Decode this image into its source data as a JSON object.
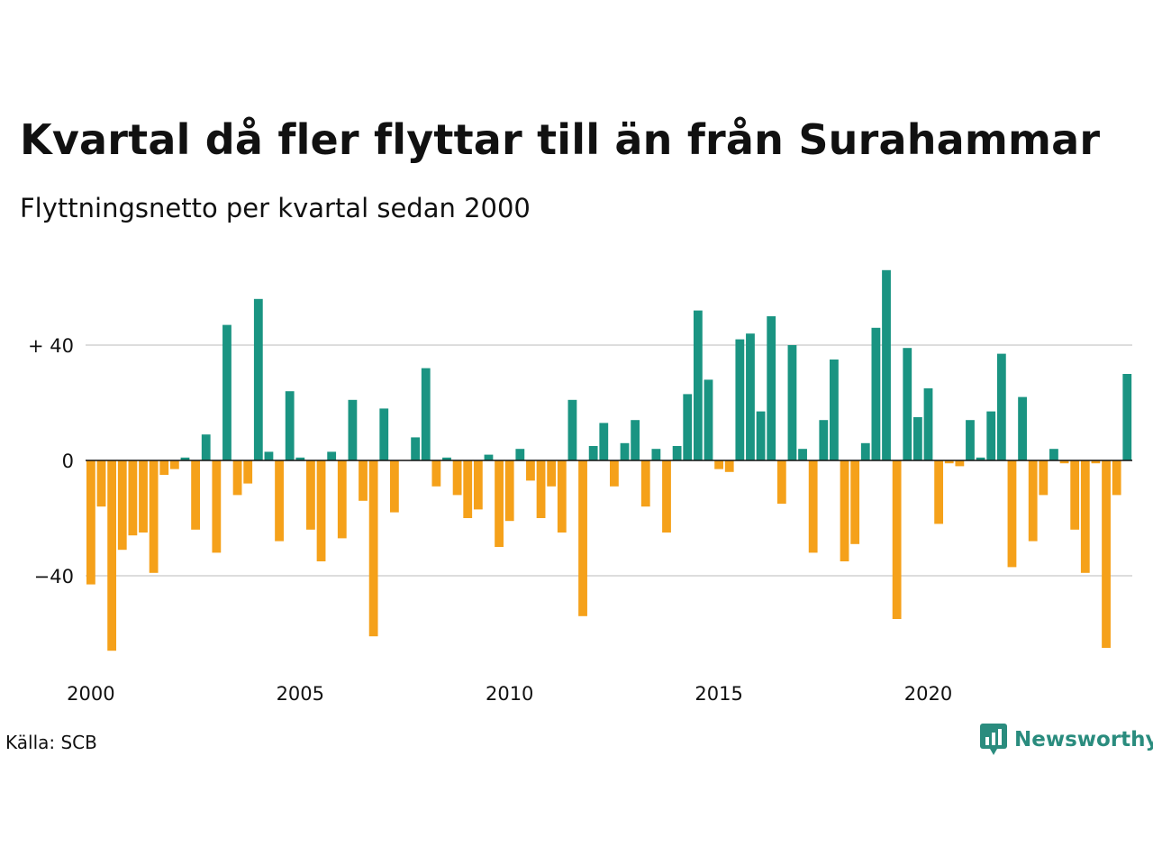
{
  "title": "Kvartal då fler flyttar till än från Surahammar",
  "subtitle": "Flyttningsnetto per kvartal sedan 2000",
  "source": "Källa: SCB",
  "brand": {
    "name": "Newsworthy",
    "icon": "newsworthy-logo-icon"
  },
  "colors": {
    "positive": "#1a9482",
    "negative": "#f5a11a",
    "grid": "#dddddd",
    "zero_line": "#111111",
    "brand": "#2a8c7e"
  },
  "chart_data": {
    "type": "bar",
    "title": "Kvartal då fler flyttar till än från Surahammar",
    "subtitle": "Flyttningsnetto per kvartal sedan 2000",
    "xlabel": "",
    "ylabel": "",
    "x_start_year": 2000,
    "periods_per_year": 4,
    "x_tick_labels": [
      "2000",
      "2005",
      "2010",
      "2015",
      "2020"
    ],
    "y_tick_values": [
      -40,
      0,
      40
    ],
    "y_tick_labels": [
      "−40",
      "0",
      "+ 40"
    ],
    "ylim": [
      -68,
      68
    ],
    "grid": true,
    "values": [
      -43,
      -16,
      -66,
      -31,
      -26,
      -25,
      -39,
      -5,
      -3,
      1,
      -24,
      9,
      -32,
      47,
      -12,
      -8,
      56,
      3,
      -28,
      24,
      1,
      -24,
      -35,
      3,
      -27,
      21,
      -14,
      -61,
      18,
      -18,
      0,
      8,
      32,
      -9,
      1,
      -12,
      -20,
      -17,
      2,
      -30,
      -21,
      4,
      -7,
      -20,
      -9,
      -25,
      21,
      -54,
      5,
      13,
      -9,
      6,
      14,
      -16,
      4,
      -25,
      5,
      23,
      52,
      28,
      -3,
      -4,
      42,
      44,
      17,
      50,
      -15,
      40,
      4,
      -32,
      14,
      35,
      -35,
      -29,
      6,
      46,
      66,
      -55,
      39,
      15,
      25,
      -22,
      -1,
      -2,
      14,
      1,
      17,
      37,
      -37,
      22,
      -28,
      -12,
      4,
      -1,
      -24,
      -39,
      -1,
      -65,
      -12,
      30
    ]
  }
}
